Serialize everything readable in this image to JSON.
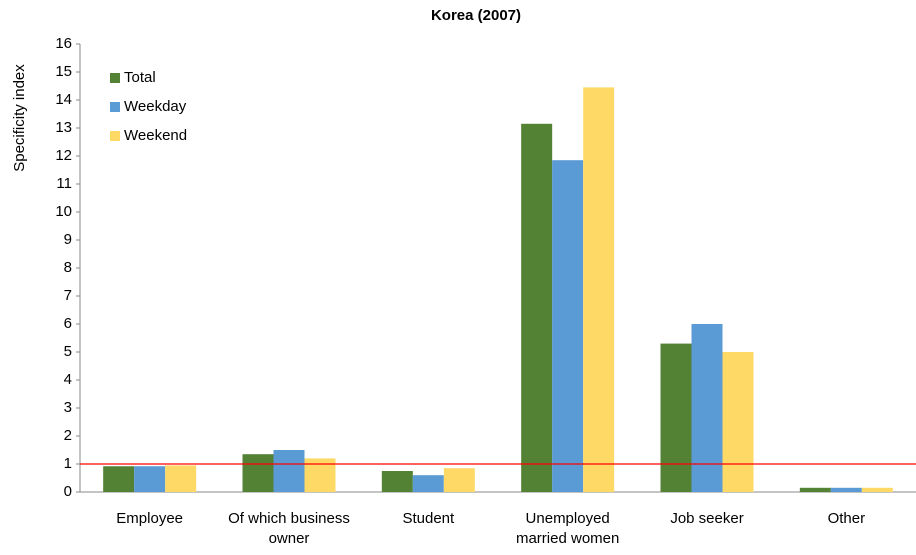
{
  "chart_data": {
    "type": "bar",
    "title": "Korea (2007)",
    "y_label": "Specificity index",
    "categories": [
      "Employee",
      "Of which business owner",
      "Student",
      "Unemployed married women",
      "Job seeker",
      "Other"
    ],
    "series": [
      {
        "name": "Total",
        "color": "#548235",
        "values": [
          0.92,
          1.35,
          0.75,
          13.15,
          5.3,
          0.15
        ]
      },
      {
        "name": "Weekday",
        "color": "#5b9bd5",
        "values": [
          0.92,
          1.5,
          0.6,
          11.85,
          6.0,
          0.15
        ]
      },
      {
        "name": "Weekend",
        "color": "#ffd966",
        "values": [
          0.95,
          1.2,
          0.85,
          14.45,
          5.0,
          0.15
        ]
      }
    ],
    "ylim": [
      0,
      16
    ],
    "yticks": [
      0,
      1,
      2,
      3,
      4,
      5,
      6,
      7,
      8,
      9,
      10,
      11,
      12,
      13,
      14,
      15,
      16
    ],
    "reference_line": 1,
    "reference_color": "#ff0000",
    "legend": "upper-left",
    "grid": false
  }
}
